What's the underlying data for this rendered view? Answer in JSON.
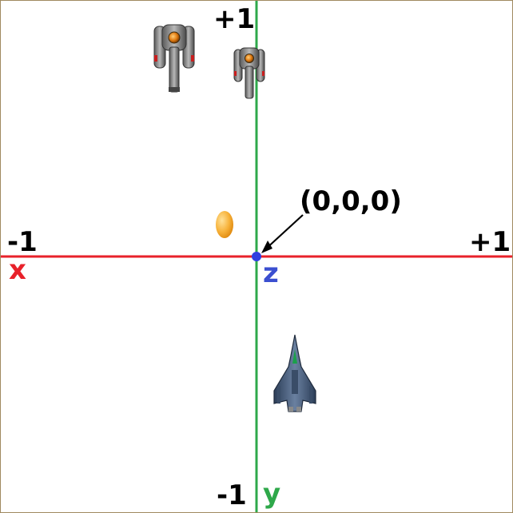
{
  "labels": {
    "x_neg": "-1",
    "x_pos": "+1",
    "y_pos": "+1",
    "y_neg": "-1",
    "x_axis": "x",
    "y_axis": "y",
    "z_axis": "z",
    "origin": "(0,0,0)"
  },
  "colors": {
    "x_axis": "#e8212a",
    "y_axis": "#2ea84a",
    "z_axis": "#3b4fd0",
    "origin_dot": "#2f3fe0",
    "border": "#a08a60"
  },
  "objects": {
    "enemy_ships": [
      "enemy-ship-icon",
      "enemy-ship-icon"
    ],
    "bullet": "orange-bullet-icon",
    "player_ship": "player-jet-icon"
  }
}
